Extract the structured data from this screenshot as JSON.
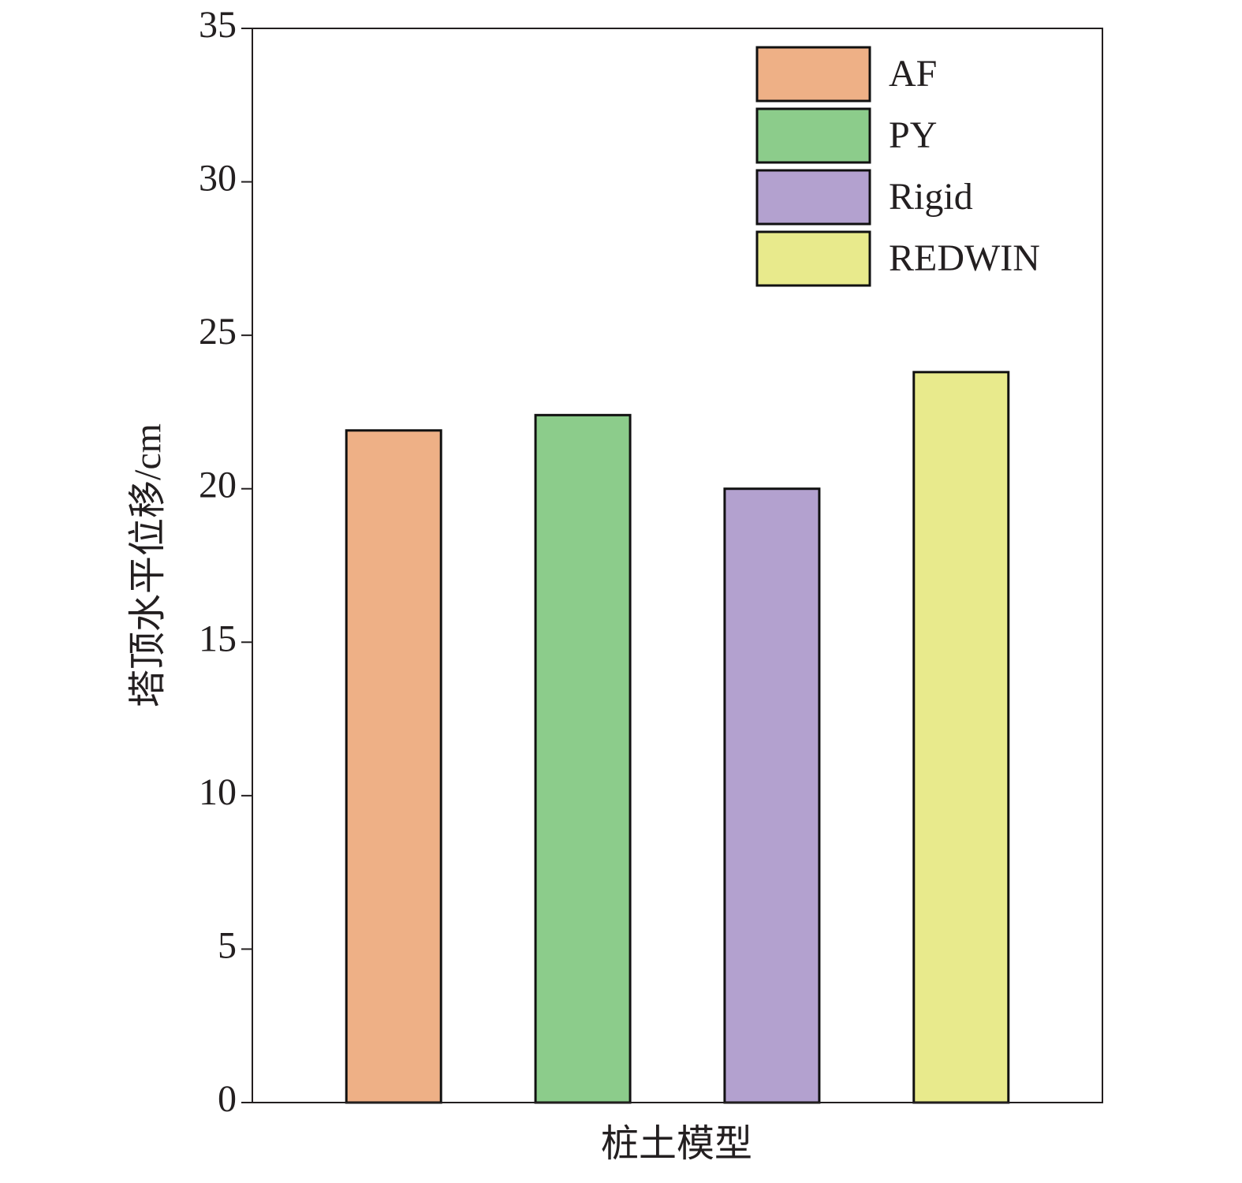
{
  "chart_data": {
    "type": "bar",
    "x_label": "桩土模型",
    "y_label": "塔顶水平位移/cm",
    "categories": [
      null
    ],
    "series": [
      {
        "name": "AF",
        "color": "#eeb086",
        "values": [
          21.9
        ]
      },
      {
        "name": "PY",
        "color": "#8ccc8b",
        "values": [
          22.4
        ]
      },
      {
        "name": "Rigid",
        "color": "#b3a1cf",
        "values": [
          20.0
        ]
      },
      {
        "name": "REDWIN",
        "color": "#e8ea8c",
        "values": [
          23.8
        ]
      }
    ],
    "ylim": [
      0,
      35
    ],
    "yticks": [
      0,
      5,
      10,
      15,
      20,
      25,
      30,
      35
    ],
    "grid": false,
    "legend": "upper right"
  }
}
